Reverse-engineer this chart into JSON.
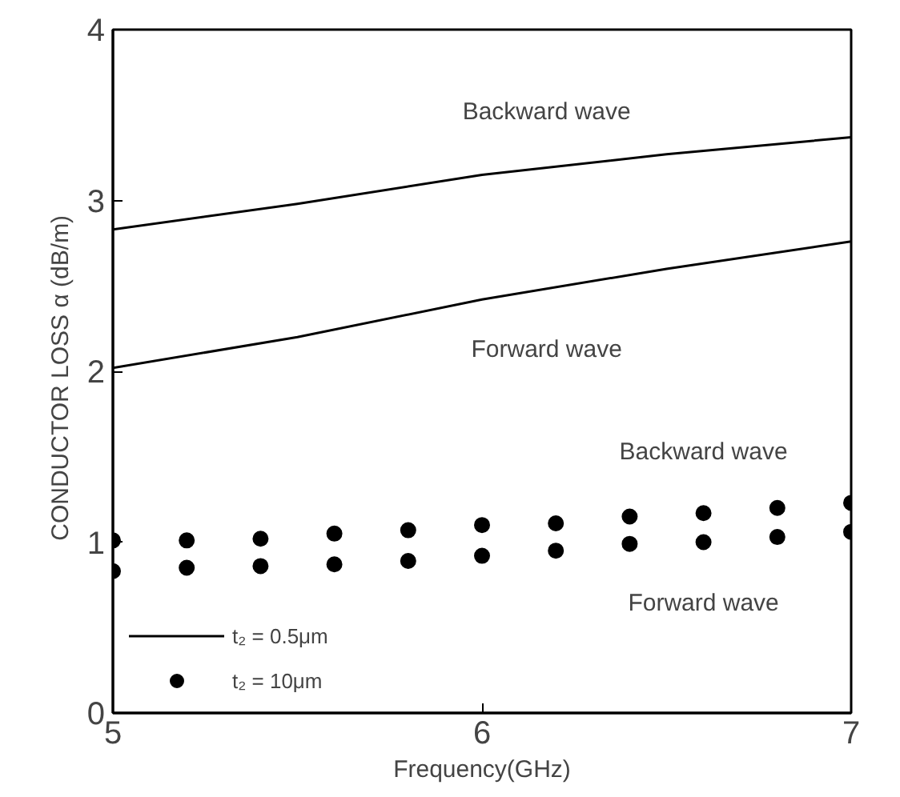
{
  "chart_data": {
    "type": "line",
    "xlabel": "Frequency(GHz)",
    "ylabel": "CONDUCTOR LOSS   α (dB/m)",
    "xlim": [
      5,
      7
    ],
    "ylim": [
      0,
      4
    ],
    "xticks": [
      5,
      6,
      7
    ],
    "yticks": [
      0,
      1,
      2,
      3,
      4
    ],
    "grid": false,
    "legend": "bottom left",
    "series": [
      {
        "name": "t₂ = 0.5μm",
        "color": "#000000",
        "x": [
          5,
          5.5,
          6,
          6.5,
          7
        ],
        "values": [
          2.83,
          2.98,
          3.15,
          3.27,
          3.37
        ]
      },
      {
        "color": "#000000",
        "x": [
          5,
          5.5,
          6,
          6.5,
          7
        ],
        "values": [
          2.02,
          2.2,
          2.42,
          2.6,
          2.76
        ]
      },
      {
        "name": "t₂ = 10μm",
        "type": "scatter",
        "marker": "circle",
        "color": "#000000",
        "x": [
          5,
          5.2,
          5.4,
          5.6,
          5.8,
          6,
          6.2,
          6.4,
          6.6,
          6.8,
          7
        ],
        "values": [
          1.01,
          1.01,
          1.02,
          1.05,
          1.07,
          1.1,
          1.11,
          1.15,
          1.17,
          1.2,
          1.23
        ]
      },
      {
        "type": "scatter",
        "marker": "circle",
        "color": "#000000",
        "x": [
          5,
          5.2,
          5.4,
          5.6,
          5.8,
          6,
          6.2,
          6.4,
          6.6,
          6.8,
          7
        ],
        "values": [
          0.83,
          0.85,
          0.86,
          0.87,
          0.89,
          0.92,
          0.95,
          0.99,
          1.0,
          1.03,
          1.06
        ]
      }
    ],
    "annotations": [
      "Backward wave",
      "Forward wave",
      "Backward wave",
      "Forward wave"
    ]
  }
}
